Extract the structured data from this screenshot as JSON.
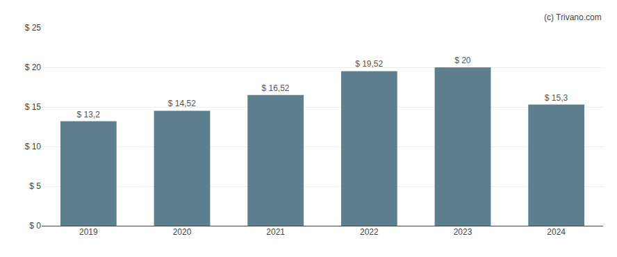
{
  "chart_data": {
    "type": "bar",
    "categories": [
      "2019",
      "2020",
      "2021",
      "2022",
      "2023",
      "2024"
    ],
    "values": [
      13.2,
      14.52,
      16.52,
      19.52,
      20.0,
      15.3
    ],
    "value_labels": [
      "$ 13,2",
      "$ 14,52",
      "$ 16,52",
      "$ 19,52",
      "$ 20",
      "$ 15,3"
    ],
    "data_labels": true,
    "color": "#5d7f8f",
    "ylim": [
      0,
      25
    ],
    "yticks": [
      {
        "value": 0,
        "label": "$ 0"
      },
      {
        "value": 5,
        "label": "$ 5"
      },
      {
        "value": 10,
        "label": "$ 10"
      },
      {
        "value": 15,
        "label": "$ 15"
      },
      {
        "value": 20,
        "label": "$ 20"
      },
      {
        "value": 25,
        "label": "$ 25"
      }
    ],
    "grid": true,
    "annotations": [
      "(c) Trivano.com"
    ]
  }
}
